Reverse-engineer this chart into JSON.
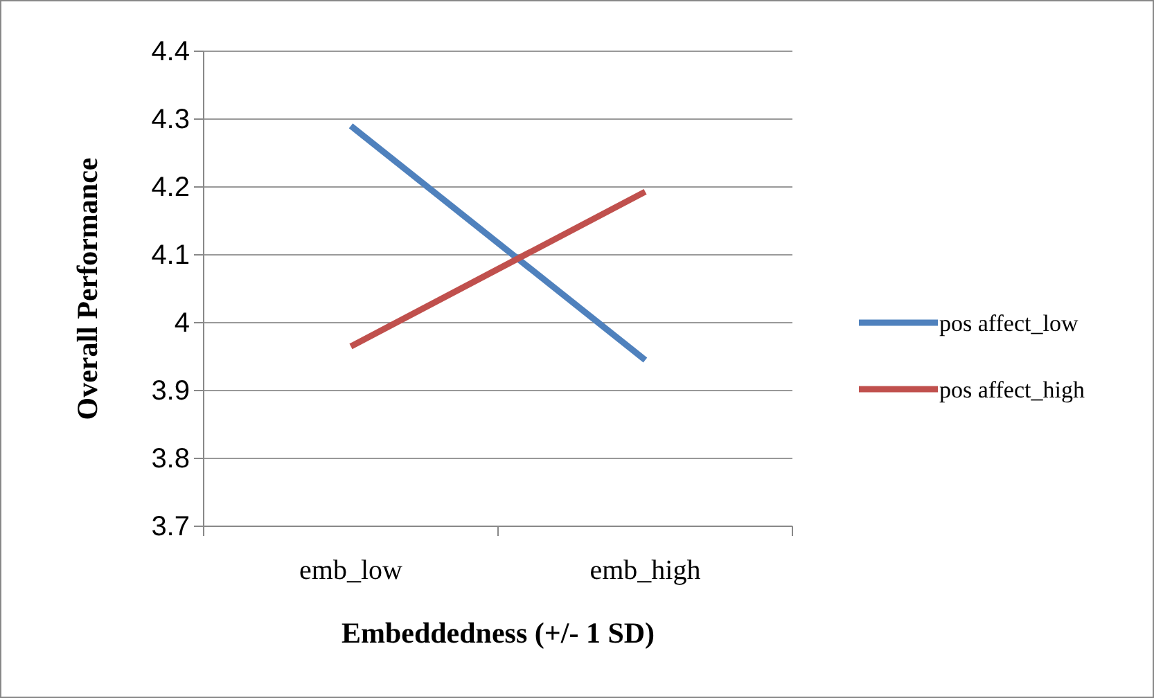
{
  "chart_data": {
    "type": "line",
    "xlabel": "Embeddedness (+/- 1 SD)",
    "ylabel": "Overall Performance",
    "categories": [
      "emb_low",
      "emb_high"
    ],
    "series": [
      {
        "name": "pos affect_low",
        "color": "#4f81bd",
        "values": [
          4.29,
          3.945
        ]
      },
      {
        "name": "pos affect_high",
        "color": "#c0504d",
        "values": [
          3.965,
          4.193
        ]
      }
    ],
    "ylim": [
      3.7,
      4.4
    ],
    "yticks": [
      3.7,
      3.8,
      3.9,
      {
        "value": 4,
        "label": "4"
      },
      4.1,
      4.2,
      4.3,
      4.4
    ],
    "grid": "y",
    "legend": "right",
    "marker": "none"
  }
}
